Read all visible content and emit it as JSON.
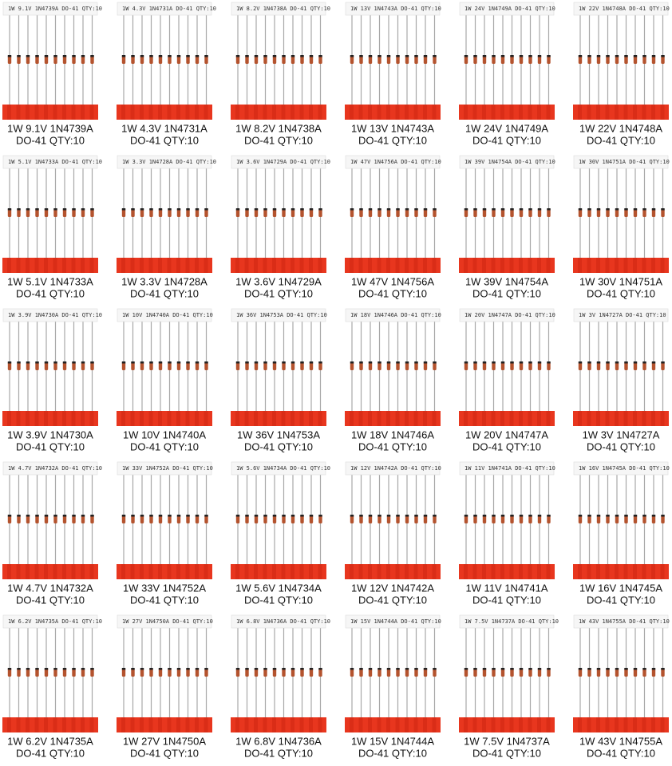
{
  "products": [
    {
      "tape": "1W 9.1V 1N4739A DO-41 QTY:10",
      "name": "1W 9.1V 1N4739A",
      "package": "DO-41 QTY:10"
    },
    {
      "tape": "1W 4.3V 1N4731A DO-41 QTY:10",
      "name": "1W 4.3V 1N4731A",
      "package": "DO-41 QTY:10"
    },
    {
      "tape": "1W 8.2V 1N4738A DO-41 QTY:10",
      "name": "1W 8.2V 1N4738A",
      "package": "DO-41 QTY:10"
    },
    {
      "tape": "1W 13V 1N4743A DO-41 QTY:10",
      "name": "1W 13V 1N4743A",
      "package": "DO-41 QTY:10"
    },
    {
      "tape": "1W 24V 1N4749A DO-41 QTY:10",
      "name": "1W 24V 1N4749A",
      "package": "DO-41 QTY:10"
    },
    {
      "tape": "1W 22V 1N4748A DO-41 QTY:10",
      "name": "1W 22V 1N4748A",
      "package": "DO-41 QTY:10"
    },
    {
      "tape": "1W 5.1V 1N4733A DO-41 QTY:10",
      "name": "1W 5.1V 1N4733A",
      "package": "DO-41 QTY:10"
    },
    {
      "tape": "1W 3.3V 1N4728A DO-41 QTY:10",
      "name": "1W 3.3V 1N4728A",
      "package": "DO-41 QTY:10"
    },
    {
      "tape": "1W 3.6V 1N4729A DO-41 QTY:10",
      "name": "1W 3.6V 1N4729A",
      "package": "DO-41 QTY:10"
    },
    {
      "tape": "1W 47V 1N4756A DO-41 QTY:10",
      "name": "1W 47V 1N4756A",
      "package": "DO-41 QTY:10"
    },
    {
      "tape": "1W 39V 1N4754A DO-41 QTY:10",
      "name": "1W 39V 1N4754A",
      "package": "DO-41 QTY:10"
    },
    {
      "tape": "1W 30V 1N4751A DO-41 QTY:10",
      "name": "1W 30V 1N4751A",
      "package": "DO-41 QTY:10"
    },
    {
      "tape": "1W 3.9V 1N4730A DO-41 QTY:10",
      "name": "1W 3.9V 1N4730A",
      "package": "DO-41 QTY:10"
    },
    {
      "tape": "1W 10V 1N4740A DO-41 QTY:10",
      "name": "1W 10V 1N4740A",
      "package": "DO-41 QTY:10"
    },
    {
      "tape": "1W 36V 1N4753A DO-41 QTY:10",
      "name": "1W 36V 1N4753A",
      "package": "DO-41 QTY:10"
    },
    {
      "tape": "1W 18V 1N4746A DO-41 QTY:10",
      "name": "1W 18V 1N4746A",
      "package": "DO-41 QTY:10"
    },
    {
      "tape": "1W 20V 1N4747A DO-41 QTY:10",
      "name": "1W 20V 1N4747A",
      "package": "DO-41 QTY:10"
    },
    {
      "tape": "1W 3V 1N4727A DO-41 QTY:10",
      "name": "1W 3V 1N4727A",
      "package": "DO-41 QTY:10"
    },
    {
      "tape": "1W 4.7V 1N4732A DO-41 QTY:10",
      "name": "1W 4.7V 1N4732A",
      "package": "DO-41 QTY:10"
    },
    {
      "tape": "1W 33V 1N4752A DO-41 QTY:10",
      "name": "1W 33V 1N4752A",
      "package": "DO-41 QTY:10"
    },
    {
      "tape": "1W 5.6V 1N4734A DO-41 QTY:10",
      "name": "1W 5.6V 1N4734A",
      "package": "DO-41 QTY:10"
    },
    {
      "tape": "1W 12V 1N4742A DO-41 QTY:10",
      "name": "1W 12V 1N4742A",
      "package": "DO-41 QTY:10"
    },
    {
      "tape": "1W 11V 1N4741A DO-41 QTY:10",
      "name": "1W 11V 1N4741A",
      "package": "DO-41 QTY:10"
    },
    {
      "tape": "1W 16V 1N4745A DO-41 QTY:10",
      "name": "1W 16V 1N4745A",
      "package": "DO-41 QTY:10"
    },
    {
      "tape": "1W 6.2V 1N4735A DO-41 QTY:10",
      "name": "1W 6.2V 1N4735A",
      "package": "DO-41 QTY:10"
    },
    {
      "tape": "1W 27V 1N4750A DO-41 QTY:10",
      "name": "1W 27V 1N4750A",
      "package": "DO-41 QTY:10"
    },
    {
      "tape": "1W 6.8V 1N4736A DO-41 QTY:10",
      "name": "1W 6.8V 1N4736A",
      "package": "DO-41 QTY:10"
    },
    {
      "tape": "1W 15V 1N4744A DO-41 QTY:10",
      "name": "1W 15V 1N4744A",
      "package": "DO-41 QTY:10"
    },
    {
      "tape": "1W 7.5V 1N4737A DO-41 QTY:10",
      "name": "1W 7.5V 1N4737A",
      "package": "DO-41 QTY:10"
    },
    {
      "tape": "1W 43V 1N4755A DO-41 QTY:10",
      "name": "1W 43V 1N4755A",
      "package": "DO-41 QTY:10"
    }
  ]
}
